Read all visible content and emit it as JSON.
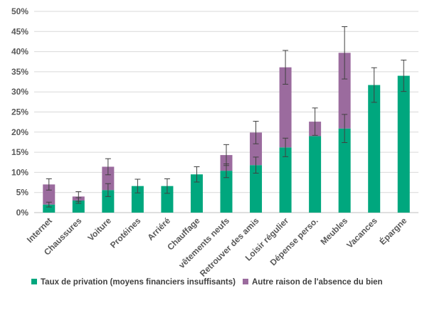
{
  "chart_data": {
    "type": "bar",
    "stacked": true,
    "categories": [
      "Internet",
      "Chaussures",
      "Voiture",
      "Protéines",
      "Arriéré",
      "Chauffage",
      "vêtements neufs",
      "Retrouver des amis",
      "Loisir régulier",
      "Dépense perso.",
      "Meubles",
      "Vacances",
      "Épargne"
    ],
    "series": [
      {
        "name": "Taux de privation (moyens financiers insuffisants)",
        "color": "#00a77e",
        "values": [
          2.0,
          3.0,
          5.6,
          6.6,
          6.6,
          9.5,
          10.4,
          11.8,
          16.2,
          19.0,
          20.9,
          31.7,
          34.0
        ],
        "error": [
          0.6,
          0.7,
          1.6,
          null,
          null,
          null,
          1.7,
          2.0,
          2.3,
          null,
          3.5,
          null,
          null
        ]
      },
      {
        "name": "Autre raison de l'absence du bien",
        "color": "#9b6b9e",
        "values": [
          5.0,
          1.0,
          5.8,
          0,
          0,
          0,
          3.9,
          8.1,
          19.9,
          3.6,
          18.8,
          0,
          0
        ],
        "total_error": [
          1.4,
          1.2,
          2.0,
          1.7,
          1.8,
          1.9,
          2.6,
          2.8,
          4.2,
          3.4,
          6.5,
          4.3,
          3.9
        ]
      }
    ],
    "xlabel": "",
    "ylabel": "",
    "ylim": [
      0,
      50
    ],
    "yticks": [
      "0%",
      "5%",
      "10%",
      "15%",
      "20%",
      "25%",
      "30%",
      "35%",
      "40%",
      "45%",
      "50%"
    ],
    "grid": true,
    "legend_position": "bottom"
  }
}
